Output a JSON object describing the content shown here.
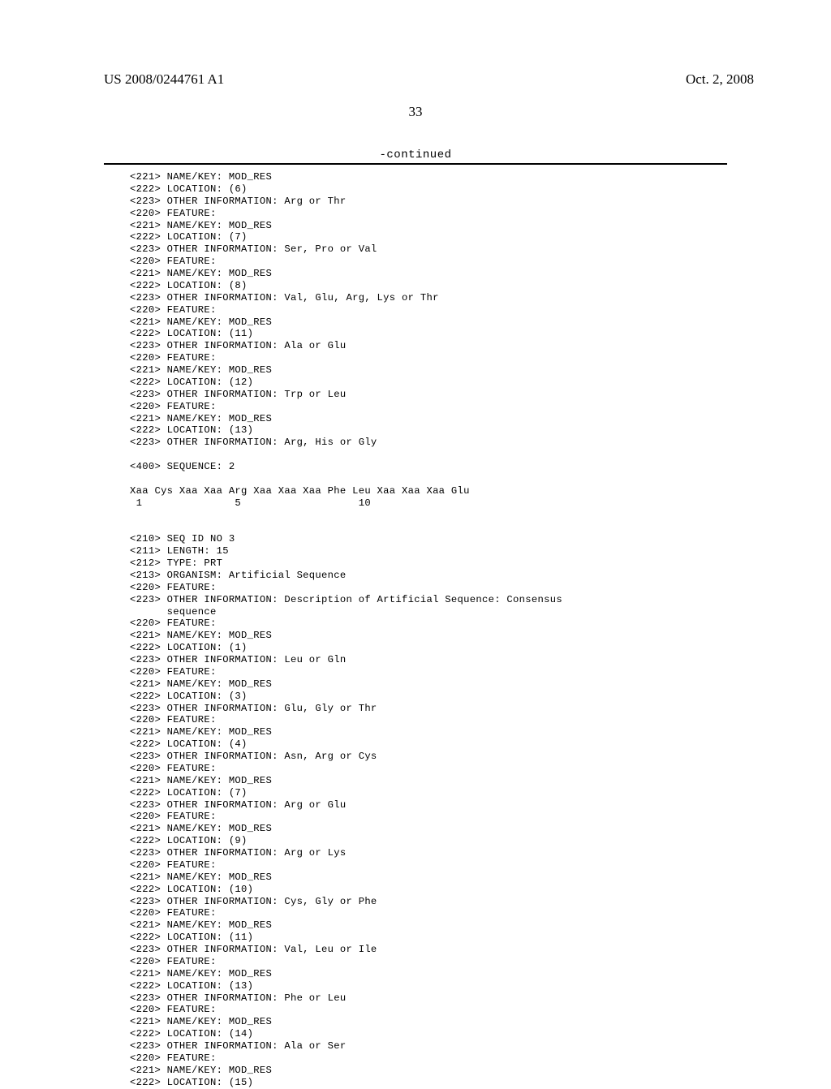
{
  "header": {
    "publication_number": "US 2008/0244761 A1",
    "publication_date": "Oct. 2, 2008"
  },
  "page_number": "33",
  "continued_label": "-continued",
  "sequence": {
    "block1": [
      "<221> NAME/KEY: MOD_RES",
      "<222> LOCATION: (6)",
      "<223> OTHER INFORMATION: Arg or Thr",
      "<220> FEATURE:",
      "<221> NAME/KEY: MOD_RES",
      "<222> LOCATION: (7)",
      "<223> OTHER INFORMATION: Ser, Pro or Val",
      "<220> FEATURE:",
      "<221> NAME/KEY: MOD_RES",
      "<222> LOCATION: (8)",
      "<223> OTHER INFORMATION: Val, Glu, Arg, Lys or Thr",
      "<220> FEATURE:",
      "<221> NAME/KEY: MOD_RES",
      "<222> LOCATION: (11)",
      "<223> OTHER INFORMATION: Ala or Glu",
      "<220> FEATURE:",
      "<221> NAME/KEY: MOD_RES",
      "<222> LOCATION: (12)",
      "<223> OTHER INFORMATION: Trp or Leu",
      "<220> FEATURE:",
      "<221> NAME/KEY: MOD_RES",
      "<222> LOCATION: (13)",
      "<223> OTHER INFORMATION: Arg, His or Gly",
      "",
      "<400> SEQUENCE: 2",
      "",
      "Xaa Cys Xaa Xaa Arg Xaa Xaa Xaa Phe Leu Xaa Xaa Xaa Glu",
      " 1               5                   10",
      "",
      "",
      "<210> SEQ ID NO 3",
      "<211> LENGTH: 15",
      "<212> TYPE: PRT",
      "<213> ORGANISM: Artificial Sequence",
      "<220> FEATURE:",
      "<223> OTHER INFORMATION: Description of Artificial Sequence: Consensus",
      "      sequence",
      "<220> FEATURE:",
      "<221> NAME/KEY: MOD_RES",
      "<222> LOCATION: (1)",
      "<223> OTHER INFORMATION: Leu or Gln",
      "<220> FEATURE:",
      "<221> NAME/KEY: MOD_RES",
      "<222> LOCATION: (3)",
      "<223> OTHER INFORMATION: Glu, Gly or Thr",
      "<220> FEATURE:",
      "<221> NAME/KEY: MOD_RES",
      "<222> LOCATION: (4)",
      "<223> OTHER INFORMATION: Asn, Arg or Cys",
      "<220> FEATURE:",
      "<221> NAME/KEY: MOD_RES",
      "<222> LOCATION: (7)",
      "<223> OTHER INFORMATION: Arg or Glu",
      "<220> FEATURE:",
      "<221> NAME/KEY: MOD_RES",
      "<222> LOCATION: (9)",
      "<223> OTHER INFORMATION: Arg or Lys",
      "<220> FEATURE:",
      "<221> NAME/KEY: MOD_RES",
      "<222> LOCATION: (10)",
      "<223> OTHER INFORMATION: Cys, Gly or Phe",
      "<220> FEATURE:",
      "<221> NAME/KEY: MOD_RES",
      "<222> LOCATION: (11)",
      "<223> OTHER INFORMATION: Val, Leu or Ile",
      "<220> FEATURE:",
      "<221> NAME/KEY: MOD_RES",
      "<222> LOCATION: (13)",
      "<223> OTHER INFORMATION: Phe or Leu",
      "<220> FEATURE:",
      "<221> NAME/KEY: MOD_RES",
      "<222> LOCATION: (14)",
      "<223> OTHER INFORMATION: Ala or Ser",
      "<220> FEATURE:",
      "<221> NAME/KEY: MOD_RES",
      "<222> LOCATION: (15)"
    ]
  },
  "styles": {
    "background_color": "#ffffff",
    "text_color": "#000000",
    "header_fontsize": 17,
    "body_fontsize": 12.2,
    "mono_font": "Courier New",
    "serif_font": "Times New Roman"
  }
}
